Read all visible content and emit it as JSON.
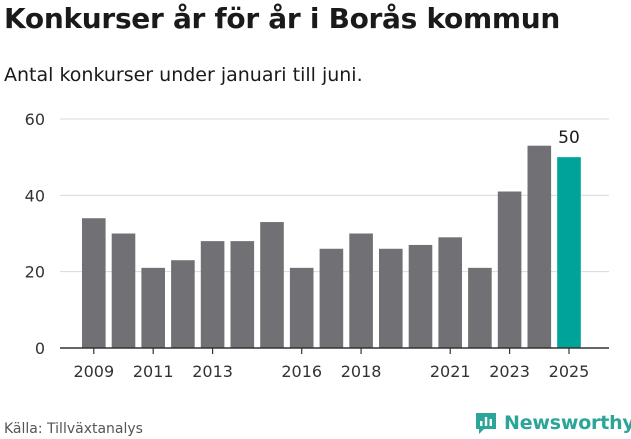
{
  "header": {
    "title": "Konkurser år för år i Borås kommun",
    "subtitle": "Antal konkurser under januari till juni."
  },
  "footer": {
    "source": "Källa: Tillväxtanalys",
    "brand": "Newsworthy"
  },
  "colors": {
    "bar": "#717075",
    "highlight": "#00a39a",
    "grid": "#d9d9d9",
    "axis": "#333333",
    "brand": "#2aa598"
  },
  "icons": {
    "brand_logo": "newsworthy-logo-icon"
  },
  "chart_data": {
    "type": "bar",
    "categories": [
      "2009",
      "2010",
      "2011",
      "2012",
      "2013",
      "2014",
      "2015",
      "2016",
      "2017",
      "2018",
      "2019",
      "2020",
      "2021",
      "2022",
      "2023",
      "2024",
      "2025"
    ],
    "x_tick_labels": [
      "2009",
      "2011",
      "2013",
      "2016",
      "2018",
      "2021",
      "2023",
      "2025"
    ],
    "values": [
      34,
      30,
      21,
      23,
      28,
      28,
      33,
      21,
      26,
      30,
      26,
      27,
      29,
      21,
      41,
      53,
      50
    ],
    "highlight_index": 16,
    "data_labels": [
      {
        "index": 16,
        "text": "50"
      }
    ],
    "ylim": [
      0,
      60
    ],
    "yticks": [
      0,
      20,
      40,
      60
    ],
    "grid": true,
    "legend": "none"
  }
}
